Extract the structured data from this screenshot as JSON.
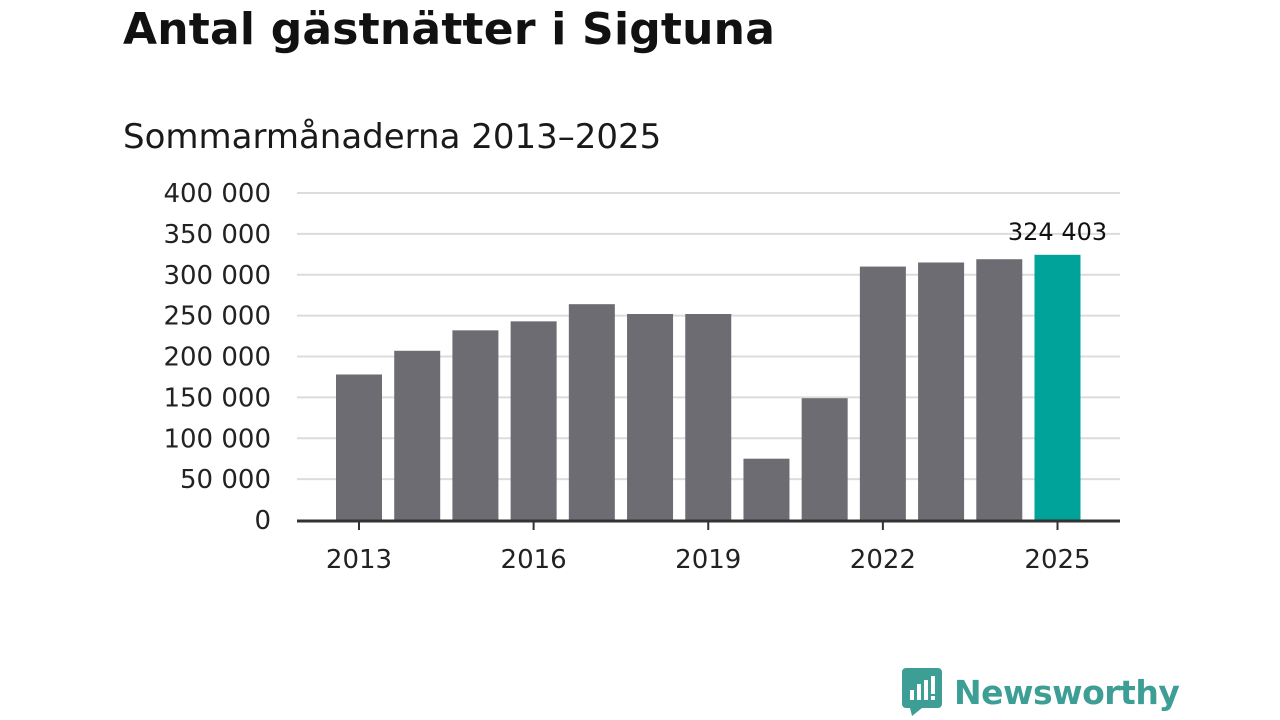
{
  "title": "Antal gästnätter i Sigtuna",
  "subtitle": "Sommarmånaderna 2013–2025",
  "brand": {
    "name": "Newsworthy",
    "color": "#3d9e95"
  },
  "chart_data": {
    "type": "bar",
    "title": "Antal gästnätter i Sigtuna",
    "subtitle": "Sommarmånaderna 2013–2025",
    "categories": [
      "2013",
      "2014",
      "2015",
      "2016",
      "2017",
      "2018",
      "2019",
      "2020",
      "2021",
      "2022",
      "2023",
      "2024",
      "2025"
    ],
    "values": [
      178000,
      207000,
      232000,
      243000,
      264000,
      252000,
      252000,
      75000,
      149000,
      310000,
      315000,
      319000,
      324403
    ],
    "x_tick_labels": [
      "2013",
      "2016",
      "2019",
      "2022",
      "2025"
    ],
    "y_tick_labels": [
      "0",
      "50 000",
      "100 000",
      "150 000",
      "200 000",
      "250 000",
      "300 000",
      "350 000",
      "400 000"
    ],
    "ylim": [
      0,
      400000
    ],
    "grid": true,
    "bar_color": "#6d6c72",
    "highlight_color": "#00a399",
    "highlight_category": "2025",
    "highlight_label": "324 403",
    "xlabel": "",
    "ylabel": ""
  }
}
